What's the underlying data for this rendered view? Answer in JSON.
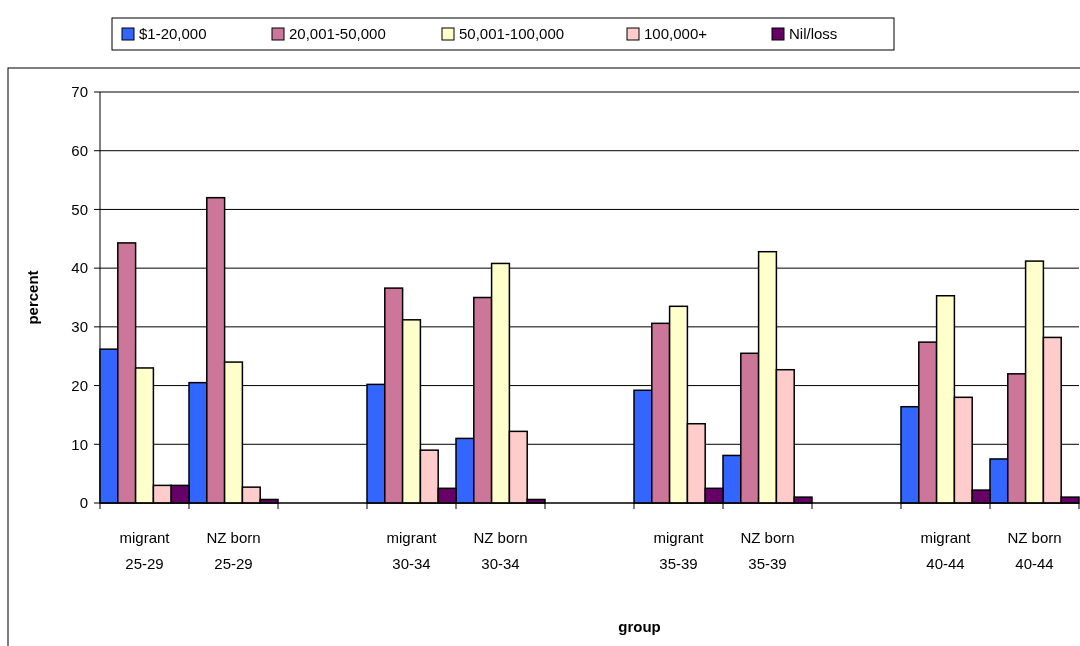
{
  "chart_data": {
    "type": "bar",
    "xlabel": "group",
    "ylabel": "percent",
    "categories": [
      "migrant 25-29",
      "NZ born 25-29",
      null,
      "migrant 30-34",
      "NZ born 30-34",
      null,
      "migrant 35-39",
      "NZ born 35-39",
      null,
      "migrant 40-44",
      "NZ born 40-44"
    ],
    "series": [
      {
        "name": "$1-20,000",
        "color": "#3366ff",
        "values": [
          26.2,
          20.5,
          null,
          20.2,
          11,
          null,
          19.2,
          8.1,
          null,
          16.4,
          7.5
        ]
      },
      {
        "name": "20,001-50,000",
        "color": "#cc7799",
        "values": [
          44.3,
          52,
          null,
          36.6,
          35,
          null,
          30.6,
          25.5,
          null,
          27.4,
          22
        ]
      },
      {
        "name": "50,001-100,000",
        "color": "#ffffcc",
        "values": [
          23,
          24,
          null,
          31.2,
          40.8,
          null,
          33.5,
          42.8,
          null,
          35.3,
          41.2
        ]
      },
      {
        "name": "100,000+",
        "color": "#ffcccc",
        "values": [
          3,
          2.7,
          null,
          9,
          12.2,
          null,
          13.5,
          22.7,
          null,
          18,
          28.2
        ]
      },
      {
        "name": "Nil/loss",
        "color": "#660066",
        "values": [
          3,
          0.6,
          null,
          2.5,
          0.6,
          null,
          2.5,
          1,
          null,
          2.2,
          1
        ]
      }
    ],
    "ylim": [
      0,
      70
    ],
    "yticks": [
      0,
      10,
      20,
      30,
      40,
      50,
      60,
      70
    ],
    "grid": "y",
    "legend": "top"
  }
}
